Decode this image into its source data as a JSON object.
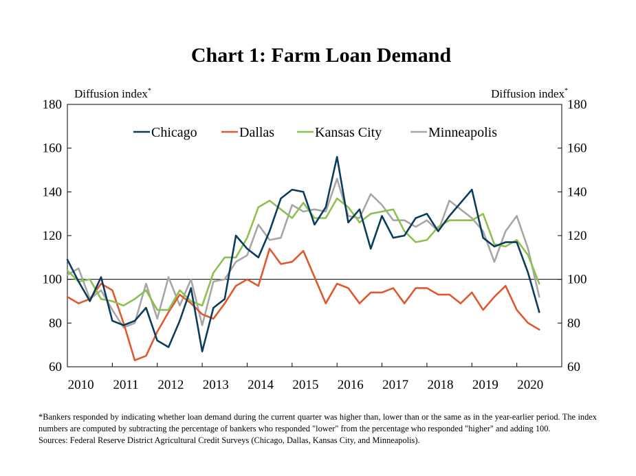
{
  "chart_data": {
    "type": "line",
    "title": "Chart 1: Farm Loan Demand",
    "ylabel_left": "Diffusion index",
    "ylabel_right": "Diffusion index",
    "ylabel_sup": "*",
    "ylim": [
      60,
      180
    ],
    "yticks": [
      60,
      80,
      100,
      120,
      140,
      160,
      180
    ],
    "xlim": [
      2010,
      2021
    ],
    "xticks": [
      "2010",
      "2011",
      "2012",
      "2013",
      "2014",
      "2015",
      "2016",
      "2017",
      "2018",
      "2019",
      "2020"
    ],
    "reference_line": 100,
    "legend_position": "top",
    "x": [
      2010.0,
      2010.25,
      2010.5,
      2010.75,
      2011.0,
      2011.25,
      2011.5,
      2011.75,
      2012.0,
      2012.25,
      2012.5,
      2012.75,
      2013.0,
      2013.25,
      2013.5,
      2013.75,
      2014.0,
      2014.25,
      2014.5,
      2014.75,
      2015.0,
      2015.25,
      2015.5,
      2015.75,
      2016.0,
      2016.25,
      2016.5,
      2016.75,
      2017.0,
      2017.25,
      2017.5,
      2017.75,
      2018.0,
      2018.25,
      2018.5,
      2018.75,
      2019.0,
      2019.25,
      2019.5,
      2019.75,
      2020.0,
      2020.25,
      2020.5
    ],
    "series": [
      {
        "name": "Chicago",
        "color": "#0b3c5d",
        "values": [
          109,
          99,
          90,
          101,
          81,
          79,
          81,
          87,
          72,
          69,
          81,
          96,
          67,
          87,
          91,
          120,
          114,
          110,
          122,
          137,
          141,
          140,
          125,
          133,
          156,
          126,
          132,
          114,
          129,
          119,
          120,
          128,
          130,
          122,
          129,
          135,
          141,
          119,
          115,
          117,
          117,
          103,
          85
        ]
      },
      {
        "name": "Dallas",
        "color": "#e0582e",
        "values": [
          92,
          89,
          91,
          98,
          95,
          80,
          63,
          65,
          76,
          85,
          93,
          89,
          84,
          82,
          89,
          97,
          100,
          97,
          114,
          107,
          108,
          113,
          101,
          89,
          98,
          96,
          89,
          94,
          94,
          96,
          89,
          96,
          96,
          93,
          93,
          89,
          94,
          86,
          92,
          97,
          86,
          80,
          77
        ]
      },
      {
        "name": "Kansas City",
        "color": "#8dc04f",
        "values": [
          104,
          99,
          100,
          91,
          90,
          88,
          91,
          95,
          86,
          86,
          95,
          90,
          88,
          103,
          110,
          110,
          119,
          133,
          136,
          132,
          128,
          135,
          128,
          128,
          137,
          133,
          126,
          130,
          131,
          132,
          122,
          117,
          118,
          124,
          127,
          127,
          127,
          130,
          116,
          115,
          118,
          111,
          98
        ]
      },
      {
        "name": "Minneapolis",
        "color": "#a6a6a6",
        "values": [
          102,
          105,
          91,
          95,
          86,
          78,
          80,
          98,
          82,
          101,
          88,
          100,
          79,
          99,
          100,
          108,
          111,
          125,
          118,
          119,
          134,
          131,
          132,
          131,
          146,
          129,
          128,
          139,
          134,
          127,
          127,
          124,
          127,
          122,
          136,
          132,
          128,
          122,
          108,
          122,
          129,
          114,
          92
        ]
      }
    ]
  },
  "footnote": {
    "note": "*Bankers responded by indicating whether loan demand during the current quarter was higher than, lower than or the same as in the year-earlier period. The index numbers are computed by subtracting the percentage of bankers who responded \"lower\" from the percentage who responded \"higher\" and adding 100.",
    "sources": "Sources: Federal Reserve District Agricultural Credit Surveys (Chicago, Dallas, Kansas City, and Minneapolis)."
  }
}
